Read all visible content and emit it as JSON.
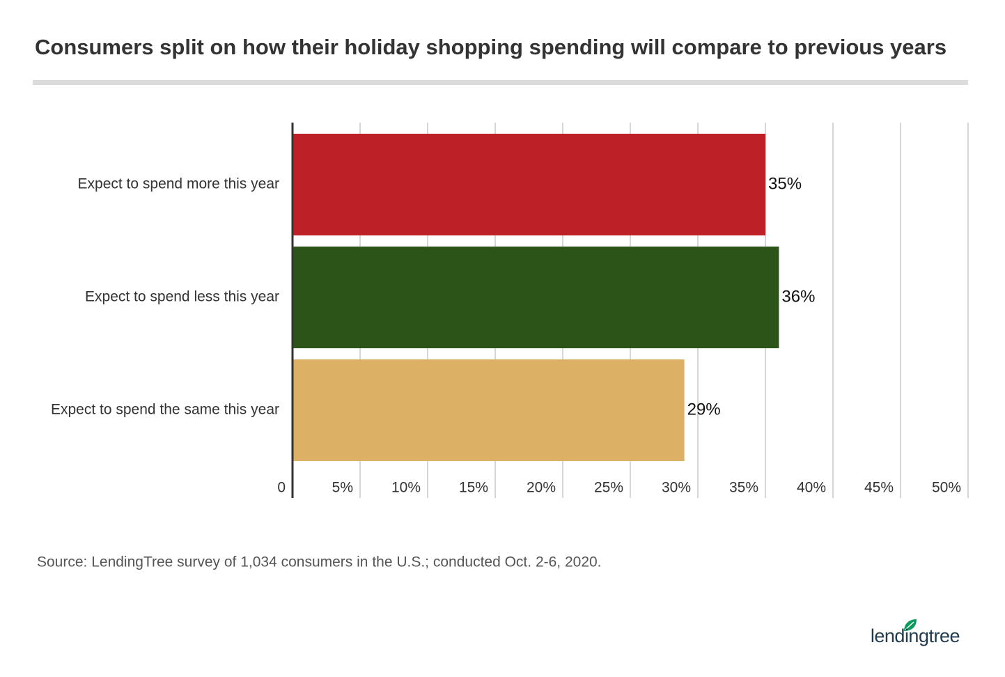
{
  "chart_data": {
    "type": "barh",
    "title": "Consumers split on how their holiday shopping spending will compare to previous years",
    "categories": [
      "Expect to spend more this year",
      "Expect to spend less this year",
      "Expect to spend the same this year"
    ],
    "values": [
      35,
      36,
      29
    ],
    "value_labels": [
      "35%",
      "36%",
      "29%"
    ],
    "colors": [
      "#bd2027",
      "#2c5419",
      "#ddb165"
    ],
    "xlim": [
      0,
      50
    ],
    "xticks": [
      0,
      {
        "value": 5,
        "label": "5%"
      },
      {
        "value": 10,
        "label": "10%"
      },
      {
        "value": 15,
        "label": "15%"
      },
      {
        "value": 20,
        "label": "20%"
      },
      {
        "value": 25,
        "label": "25%"
      },
      {
        "value": 30,
        "label": "30%"
      },
      {
        "value": 35,
        "label": "35%"
      },
      {
        "value": 40,
        "label": "40%"
      },
      {
        "value": 45,
        "label": "45%"
      },
      {
        "value": 50,
        "label": "50%"
      }
    ],
    "grid": true,
    "source": "Source: LendingTree survey of 1,034 consumers in the U.S.; conducted Oct. 2-6, 2020.",
    "logo": "lendingtree"
  }
}
